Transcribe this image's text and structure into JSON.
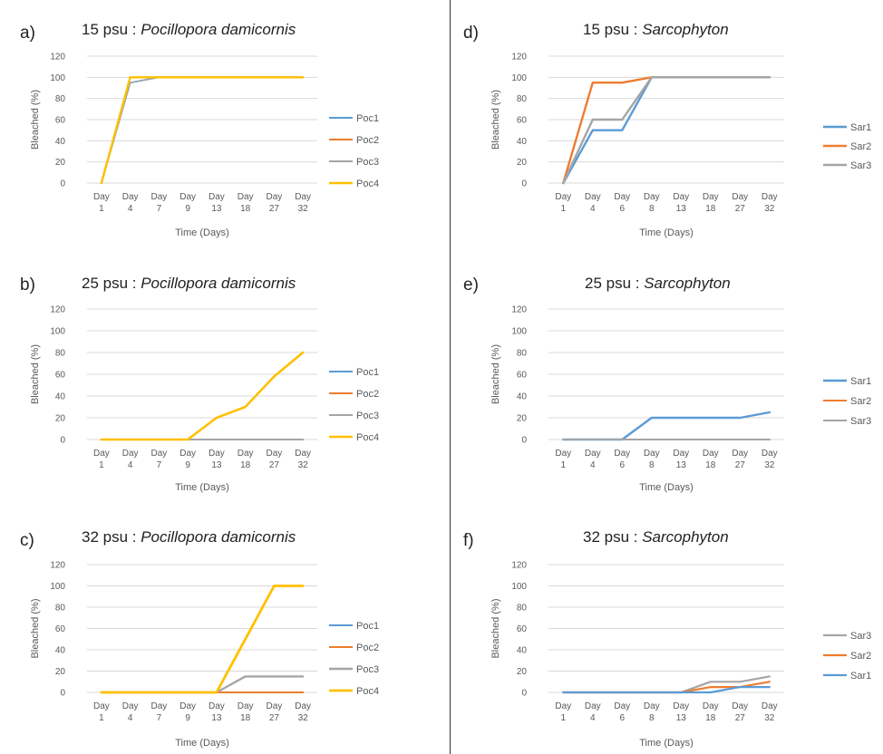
{
  "colors": {
    "blue": "#5b9bd5",
    "orange": "#ed7d31",
    "gray": "#a5a5a5",
    "yellow": "#ffc000",
    "grid": "#d9d9d9",
    "text": "#595959"
  },
  "chart_data": [
    {
      "type": "line",
      "panel_label": "a)",
      "title_psu": "15 psu : ",
      "title_species": "Pocillopora damicornis",
      "title_italic": true,
      "xlabel": "Time (Days)",
      "ylabel": "Bleached (%)",
      "ylim": [
        0,
        120
      ],
      "yticks": [
        0,
        20,
        40,
        60,
        80,
        100,
        120
      ],
      "grid": true,
      "legend_position": "right",
      "categories": [
        "Day 1",
        "Day 4",
        "Day 7",
        "Day 9",
        "Day 13",
        "Day 18",
        "Day 27",
        "Day 32"
      ],
      "series": [
        {
          "name": "Poc1",
          "color": "#5b9bd5",
          "width": 1.8,
          "values": [
            0,
            95,
            100,
            100,
            100,
            100,
            100,
            100
          ]
        },
        {
          "name": "Poc2",
          "color": "#ed7d31",
          "width": 1.8,
          "values": [
            0,
            100,
            100,
            100,
            100,
            100,
            100,
            100
          ]
        },
        {
          "name": "Poc3",
          "color": "#a5a5a5",
          "width": 1.2,
          "values": [
            0,
            95,
            100,
            100,
            100,
            100,
            100,
            100
          ]
        },
        {
          "name": "Poc4",
          "color": "#ffc000",
          "width": 2.4,
          "values": [
            0,
            100,
            100,
            100,
            100,
            100,
            100,
            100
          ]
        }
      ]
    },
    {
      "type": "line",
      "panel_label": "b)",
      "title_psu": "25 psu : ",
      "title_species": "Pocillopora damicornis",
      "title_italic": true,
      "xlabel": "Time (Days)",
      "ylabel": "Bleached (%)",
      "ylim": [
        0,
        120
      ],
      "yticks": [
        0,
        20,
        40,
        60,
        80,
        100,
        120
      ],
      "grid": true,
      "legend_position": "right",
      "categories": [
        "Day 1",
        "Day 4",
        "Day 7",
        "Day 9",
        "Day 13",
        "Day 18",
        "Day 27",
        "Day 32"
      ],
      "series": [
        {
          "name": "Poc1",
          "color": "#5b9bd5",
          "width": 2.0,
          "values": [
            0,
            0,
            0,
            0,
            0,
            0,
            0,
            0
          ]
        },
        {
          "name": "Poc2",
          "color": "#ed7d31",
          "width": 2.0,
          "values": [
            0,
            0,
            0,
            0,
            0,
            0,
            0,
            0
          ]
        },
        {
          "name": "Poc3",
          "color": "#a5a5a5",
          "width": 2.0,
          "values": [
            0,
            0,
            0,
            0,
            0,
            0,
            0,
            0
          ]
        },
        {
          "name": "Poc4",
          "color": "#ffc000",
          "width": 2.6,
          "values": [
            0,
            0,
            0,
            0,
            20,
            30,
            58,
            80
          ]
        }
      ]
    },
    {
      "type": "line",
      "panel_label": "c)",
      "title_psu": "32 psu : ",
      "title_species": "Pocillopora damicornis",
      "title_italic": true,
      "xlabel": "Time (Days)",
      "ylabel": "Bleached (%)",
      "ylim": [
        0,
        120
      ],
      "yticks": [
        0,
        20,
        40,
        60,
        80,
        100,
        120
      ],
      "grid": true,
      "legend_position": "right",
      "categories": [
        "Day 1",
        "Day 4",
        "Day 7",
        "Day 9",
        "Day 13",
        "Day 18",
        "Day 27",
        "Day 32"
      ],
      "series": [
        {
          "name": "Poc1",
          "color": "#5b9bd5",
          "width": 2.0,
          "values": [
            0,
            0,
            0,
            0,
            0,
            0,
            0,
            0
          ]
        },
        {
          "name": "Poc2",
          "color": "#ed7d31",
          "width": 2.0,
          "values": [
            0,
            0,
            0,
            0,
            0,
            0,
            0,
            0
          ]
        },
        {
          "name": "Poc3",
          "color": "#a5a5a5",
          "width": 2.4,
          "values": [
            0,
            0,
            0,
            0,
            0,
            15,
            15,
            15
          ]
        },
        {
          "name": "Poc4",
          "color": "#ffc000",
          "width": 2.8,
          "values": [
            0,
            0,
            0,
            0,
            0,
            50,
            100,
            100
          ]
        }
      ]
    },
    {
      "type": "line",
      "panel_label": "d)",
      "title_psu": "15 psu : ",
      "title_species": "Sarcophyton",
      "title_italic": true,
      "xlabel": "Time (Days)",
      "ylabel": "Bleached (%)",
      "ylim": [
        0,
        120
      ],
      "yticks": [
        0,
        20,
        40,
        60,
        80,
        100,
        120
      ],
      "grid": true,
      "legend_position": "right",
      "categories": [
        "Day 1",
        "Day 4",
        "Day 6",
        "Day 8",
        "Day 13",
        "Day 18",
        "Day 27",
        "Day 32"
      ],
      "series": [
        {
          "name": "Sar1",
          "color": "#5b9bd5",
          "width": 2.4,
          "values": [
            0,
            50,
            50,
            100,
            100,
            100,
            100,
            100
          ]
        },
        {
          "name": "Sar2",
          "color": "#ed7d31",
          "width": 2.4,
          "values": [
            0,
            95,
            95,
            100,
            100,
            100,
            100,
            100
          ]
        },
        {
          "name": "Sar3",
          "color": "#a5a5a5",
          "width": 2.4,
          "values": [
            0,
            60,
            60,
            100,
            100,
            100,
            100,
            100
          ]
        }
      ]
    },
    {
      "type": "line",
      "panel_label": "e)",
      "title_psu": "25 psu : ",
      "title_species": "Sarcophyton",
      "title_italic": true,
      "xlabel": "Time (Days)",
      "ylabel": "Bleached (%)",
      "ylim": [
        0,
        120
      ],
      "yticks": [
        0,
        20,
        40,
        60,
        80,
        100,
        120
      ],
      "grid": true,
      "legend_position": "right",
      "categories": [
        "Day 1",
        "Day 4",
        "Day 6",
        "Day 8",
        "Day 13",
        "Day 18",
        "Day 27",
        "Day 32"
      ],
      "series": [
        {
          "name": "Sar1",
          "color": "#5b9bd5",
          "width": 2.4,
          "values": [
            0,
            0,
            0,
            20,
            20,
            20,
            20,
            25
          ]
        },
        {
          "name": "Sar2",
          "color": "#ed7d31",
          "width": 2.0,
          "values": [
            0,
            0,
            0,
            0,
            0,
            0,
            0,
            0
          ]
        },
        {
          "name": "Sar3",
          "color": "#a5a5a5",
          "width": 2.0,
          "values": [
            0,
            0,
            0,
            0,
            0,
            0,
            0,
            0
          ]
        }
      ]
    },
    {
      "type": "line",
      "panel_label": "f)",
      "title_psu": "32 psu : ",
      "title_species": "Sarcophyton",
      "title_italic": true,
      "xlabel": "Time (Days)",
      "ylabel": "Bleached (%)",
      "ylim": [
        0,
        120
      ],
      "yticks": [
        0,
        20,
        40,
        60,
        80,
        100,
        120
      ],
      "grid": true,
      "legend_position": "right",
      "categories": [
        "Day 1",
        "Day 4",
        "Day 6",
        "Day 8",
        "Day 13",
        "Day 18",
        "Day 27",
        "Day 32"
      ],
      "series": [
        {
          "name": "Sar3",
          "color": "#a5a5a5",
          "width": 2.2,
          "values": [
            0,
            0,
            0,
            0,
            0,
            10,
            10,
            15
          ]
        },
        {
          "name": "Sar2",
          "color": "#ed7d31",
          "width": 2.2,
          "values": [
            0,
            0,
            0,
            0,
            0,
            5,
            5,
            10
          ]
        },
        {
          "name": "Sar1",
          "color": "#5b9bd5",
          "width": 2.2,
          "values": [
            0,
            0,
            0,
            0,
            0,
            0,
            5,
            5
          ]
        }
      ]
    }
  ]
}
